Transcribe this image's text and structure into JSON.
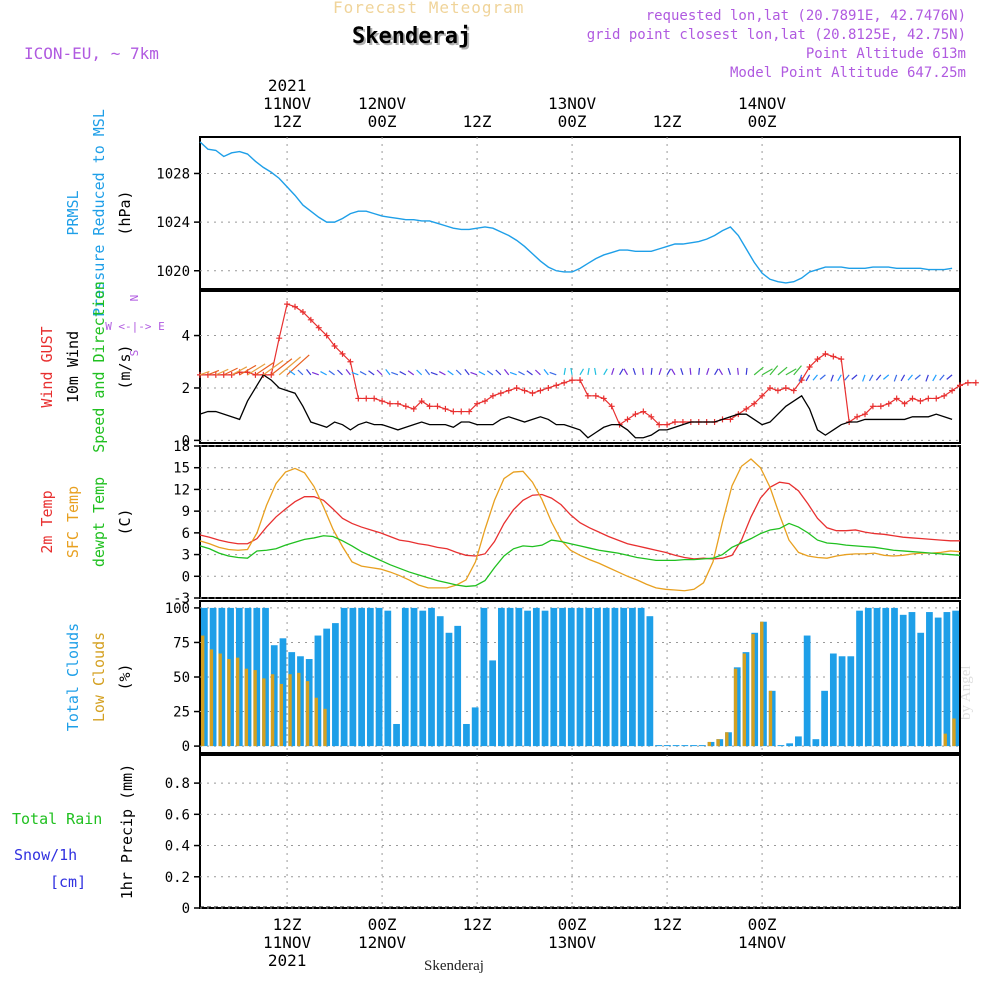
{
  "header": {
    "overtitle": "Forecast Meteogram",
    "title": "Skenderaj",
    "model": "ICON-EU, ~ 7km",
    "requested": "requested lon,lat (20.7891E, 42.7476N)",
    "gridpoint": "grid point closest lon,lat (20.8125E, 42.75N)",
    "point_alt": "Point Altitude 613m",
    "model_alt": "Model Point Altitude 647.25m",
    "footer": "Skenderaj",
    "credit": "by Angel",
    "compass": [
      "N",
      "W <-|-> E",
      "S"
    ]
  },
  "colors": {
    "pressure": "#1e9fe8",
    "gust": "#e83030",
    "wind": "#000000",
    "temp": "#e83030",
    "sfc": "#e8a020",
    "dew": "#20c020",
    "total_clouds": "#1e9fe8",
    "low_clouds": "#d4a020",
    "snow": "#3030e0",
    "rain": "#20c020",
    "purple": "#b05ae0"
  },
  "time_axis": {
    "top_labels": [
      {
        "t": 12,
        "lines": [
          "2021",
          "11NOV",
          "12Z"
        ]
      },
      {
        "t": 24,
        "lines": [
          "12NOV",
          "00Z"
        ]
      },
      {
        "t": 36,
        "lines": [
          "12Z"
        ]
      },
      {
        "t": 48,
        "lines": [
          "13NOV",
          "00Z"
        ]
      },
      {
        "t": 60,
        "lines": [
          "12Z"
        ]
      },
      {
        "t": 72,
        "lines": [
          "14NOV",
          "00Z"
        ]
      }
    ],
    "bottom_labels": [
      {
        "t": 12,
        "lines": [
          "12Z",
          "11NOV",
          "2021"
        ]
      },
      {
        "t": 24,
        "lines": [
          "00Z",
          "12NOV"
        ]
      },
      {
        "t": 36,
        "lines": [
          "12Z"
        ]
      },
      {
        "t": 48,
        "lines": [
          "00Z",
          "13NOV"
        ]
      },
      {
        "t": 60,
        "lines": [
          "12Z"
        ]
      },
      {
        "t": 72,
        "lines": [
          "00Z",
          "14NOV"
        ]
      }
    ]
  },
  "chart_data": [
    {
      "type": "line",
      "ylabel_lines": [
        {
          "text": "PRMSL",
          "color": "#1e9fe8"
        },
        {
          "text": "Pressure Reduced to MSL",
          "color": "#1e9fe8"
        },
        {
          "text": "(hPa)",
          "color": "#000000"
        }
      ],
      "ylim": [
        1018.5,
        1031
      ],
      "yticks": [
        1020,
        1024,
        1028
      ],
      "series": [
        {
          "values": [
            1030.6,
            1030.0,
            1029.9,
            1029.4,
            1029.7,
            1029.8,
            1029.6,
            1029.0,
            1028.5,
            1028.1,
            1027.6,
            1026.9,
            1026.2,
            1025.4,
            1024.9,
            1024.4,
            1024.0,
            1024.0,
            1024.3,
            1024.7,
            1024.9,
            1024.9,
            1024.7,
            1024.5,
            1024.4,
            1024.3,
            1024.2,
            1024.2,
            1024.1,
            1024.1,
            1023.9,
            1023.7,
            1023.5,
            1023.4,
            1023.4,
            1023.5,
            1023.6,
            1023.5,
            1023.2,
            1022.9,
            1022.5,
            1022.0,
            1021.4,
            1020.8,
            1020.3,
            1020.0,
            1019.9,
            1019.9,
            1020.2,
            1020.6,
            1021.0,
            1021.3,
            1021.5,
            1021.7,
            1021.7,
            1021.6,
            1021.6,
            1021.6,
            1021.8,
            1022.0,
            1022.2,
            1022.2,
            1022.3,
            1022.4,
            1022.6,
            1022.9,
            1023.3,
            1023.6,
            1022.9,
            1021.8,
            1020.7,
            1019.8,
            1019.3,
            1019.1,
            1019.0,
            1019.1,
            1019.4,
            1019.9,
            1020.1,
            1020.3,
            1020.3,
            1020.3,
            1020.2,
            1020.2,
            1020.2,
            1020.3,
            1020.3,
            1020.3,
            1020.2,
            1020.2,
            1020.2,
            1020.2,
            1020.1,
            1020.1,
            1020.1,
            1020.2
          ]
        }
      ]
    },
    {
      "type": "line",
      "ylabel_lines": [
        {
          "text": "Wind GUST",
          "color": "#e83030"
        },
        {
          "text": "10m Wind",
          "color": "#000000"
        },
        {
          "text": "Speed and Direction",
          "color": "#20c020"
        },
        {
          "text": "(m/s)",
          "color": "#000000"
        }
      ],
      "ylim": [
        -0.1,
        5.7
      ],
      "yticks": [
        0,
        2,
        4
      ],
      "series": [
        {
          "values": [
            2.5,
            2.5,
            2.5,
            2.5,
            2.5,
            2.6,
            2.6,
            2.5,
            2.5,
            2.5,
            3.9,
            5.2,
            5.1,
            4.9,
            4.6,
            4.3,
            4.0,
            3.6,
            3.3,
            3.0,
            1.6,
            1.6,
            1.6,
            1.5,
            1.4,
            1.4,
            1.3,
            1.2,
            1.5,
            1.3,
            1.3,
            1.2,
            1.1,
            1.1,
            1.1,
            1.4,
            1.5,
            1.7,
            1.8,
            1.9,
            2.0,
            1.9,
            1.8,
            1.9,
            2.0,
            2.1,
            2.2,
            2.3,
            2.3,
            1.7,
            1.7,
            1.6,
            1.3,
            0.6,
            0.8,
            1.0,
            1.1,
            0.9,
            0.6,
            0.6,
            0.7,
            0.7,
            0.7,
            0.7,
            0.7,
            0.7,
            0.8,
            0.8,
            1.0,
            1.2,
            1.4,
            1.7,
            2.0,
            1.9,
            2.0,
            1.9,
            2.3,
            2.8,
            3.1,
            3.3,
            3.2,
            3.1,
            0.7,
            0.9,
            1.0,
            1.3,
            1.3,
            1.4,
            1.6,
            1.4,
            1.6,
            1.5,
            1.6,
            1.6,
            1.7,
            1.9,
            2.1,
            2.2,
            2.2
          ]
        },
        {
          "values": [
            1.0,
            1.1,
            1.1,
            1.0,
            0.9,
            0.8,
            1.5,
            2.0,
            2.5,
            2.3,
            2.0,
            1.9,
            1.8,
            1.3,
            0.7,
            0.6,
            0.5,
            0.7,
            0.6,
            0.4,
            0.6,
            0.7,
            0.6,
            0.6,
            0.5,
            0.4,
            0.5,
            0.6,
            0.7,
            0.6,
            0.6,
            0.6,
            0.5,
            0.7,
            0.7,
            0.6,
            0.6,
            0.6,
            0.8,
            0.9,
            0.8,
            0.7,
            0.8,
            0.9,
            0.8,
            0.6,
            0.6,
            0.5,
            0.4,
            0.1,
            0.3,
            0.5,
            0.6,
            0.6,
            0.4,
            0.1,
            0.1,
            0.2,
            0.4,
            0.4,
            0.5,
            0.6,
            0.7,
            0.7,
            0.7,
            0.7,
            0.8,
            0.9,
            1.0,
            1.0,
            0.8,
            0.6,
            0.7,
            1.0,
            1.3,
            1.5,
            1.7,
            1.2,
            0.4,
            0.2,
            0.4,
            0.6,
            0.7,
            0.7,
            0.8,
            0.8,
            0.8,
            0.8,
            0.8,
            0.8,
            0.9,
            0.9,
            0.9,
            1.0,
            0.9,
            0.8
          ]
        }
      ]
    },
    {
      "type": "line",
      "ylabel_lines": [
        {
          "text": "2m Temp",
          "color": "#e83030"
        },
        {
          "text": "SFC Temp",
          "color": "#e8a020"
        },
        {
          "text": "dewpt Temp",
          "color": "#20c020"
        },
        {
          "text": "(C)",
          "color": "#000000"
        }
      ],
      "ylim": [
        -3,
        18
      ],
      "yticks": [
        -3,
        0,
        3,
        6,
        9,
        12,
        15,
        18
      ],
      "series": [
        {
          "values": [
            5.7,
            5.4,
            5.0,
            4.7,
            4.5,
            4.5,
            5.2,
            6.8,
            8.2,
            9.3,
            10.3,
            11.0,
            11.0,
            10.5,
            9.3,
            8.0,
            7.3,
            6.8,
            6.4,
            6.0,
            5.5,
            5.0,
            4.8,
            4.5,
            4.3,
            4.0,
            3.8,
            3.3,
            2.9,
            2.8,
            3.1,
            4.8,
            7.3,
            9.2,
            10.5,
            11.2,
            11.3,
            10.8,
            9.9,
            8.5,
            7.4,
            6.7,
            6.1,
            5.5,
            5.0,
            4.5,
            4.2,
            3.9,
            3.6,
            3.3,
            2.9,
            2.6,
            2.4,
            2.5,
            2.4,
            2.5,
            2.9,
            5.0,
            8.2,
            10.8,
            12.3,
            13.0,
            12.8,
            11.8,
            10.0,
            8.0,
            6.7,
            6.3,
            6.3,
            6.4,
            6.1,
            5.9,
            5.8,
            5.6,
            5.4,
            5.3,
            5.2,
            5.1,
            5.0,
            4.9,
            4.9
          ]
        },
        {
          "values": [
            4.9,
            4.5,
            4.0,
            3.7,
            3.6,
            3.7,
            6.0,
            9.8,
            12.8,
            14.4,
            14.9,
            14.3,
            12.4,
            9.6,
            6.5,
            4.1,
            2.0,
            1.4,
            1.2,
            1.0,
            0.6,
            0.1,
            -0.5,
            -1.2,
            -1.6,
            -1.6,
            -1.6,
            -1.2,
            -0.5,
            2.0,
            6.5,
            10.5,
            13.5,
            14.4,
            14.5,
            13.0,
            10.6,
            7.5,
            5.0,
            3.6,
            2.9,
            2.3,
            1.8,
            1.2,
            0.6,
            0.0,
            -0.5,
            -1.1,
            -1.6,
            -1.8,
            -1.9,
            -2.0,
            -1.8,
            -0.9,
            2.0,
            7.5,
            12.5,
            15.2,
            16.2,
            15.0,
            12.3,
            8.5,
            5.0,
            3.3,
            2.8,
            2.6,
            2.5,
            2.8,
            3.0,
            3.1,
            3.1,
            3.2,
            2.9,
            2.8,
            2.9,
            3.1,
            3.2,
            3.2,
            3.3,
            3.5,
            3.4
          ]
        },
        {
          "values": [
            4.2,
            3.8,
            3.2,
            2.8,
            2.6,
            2.5,
            3.5,
            3.6,
            3.8,
            4.3,
            4.7,
            5.1,
            5.3,
            5.6,
            5.5,
            4.9,
            4.2,
            3.4,
            2.8,
            2.2,
            1.6,
            1.1,
            0.6,
            0.2,
            -0.2,
            -0.6,
            -0.9,
            -1.2,
            -1.4,
            -1.3,
            -0.6,
            1.2,
            2.8,
            3.8,
            4.2,
            4.1,
            4.3,
            5.0,
            4.8,
            4.5,
            4.2,
            3.9,
            3.6,
            3.4,
            3.2,
            2.9,
            2.6,
            2.4,
            2.2,
            2.2,
            2.2,
            2.3,
            2.3,
            2.4,
            2.5,
            3.0,
            4.0,
            4.6,
            5.2,
            5.9,
            6.4,
            6.6,
            7.3,
            6.8,
            6.0,
            5.0,
            4.6,
            4.5,
            4.3,
            4.2,
            4.1,
            4.0,
            3.8,
            3.6,
            3.5,
            3.4,
            3.3,
            3.2,
            3.1,
            3.0,
            2.9
          ]
        }
      ]
    },
    {
      "type": "bar",
      "ylabel_lines": [
        {
          "text": "Total Clouds",
          "color": "#1e9fe8"
        },
        {
          "text": "Low Clouds",
          "color": "#d4a020"
        },
        {
          "text": "(%)",
          "color": "#000000"
        }
      ],
      "ylim": [
        -5,
        105
      ],
      "yticks": [
        0,
        25,
        50,
        75,
        100
      ],
      "series": [
        {
          "values": [
            100,
            100,
            100,
            100,
            100,
            100,
            100,
            100,
            73,
            78,
            68,
            65,
            63,
            80,
            85,
            89,
            100,
            100,
            100,
            100,
            100,
            98,
            16,
            100,
            100,
            98,
            100,
            94,
            82,
            87,
            16,
            28,
            100,
            62,
            100,
            100,
            100,
            98,
            100,
            98,
            100,
            100,
            100,
            100,
            100,
            100,
            100,
            100,
            100,
            100,
            100,
            94,
            0,
            0,
            0,
            0,
            0,
            0,
            3,
            5,
            10,
            57,
            68,
            82,
            90,
            40,
            0,
            2,
            7,
            80,
            5,
            40,
            67,
            65,
            65,
            98,
            100,
            100,
            100,
            100,
            95,
            97,
            82,
            97,
            93,
            97,
            98
          ]
        },
        {
          "values": [
            80,
            70,
            67,
            63,
            64,
            56,
            55,
            49,
            52,
            45,
            52,
            53,
            47,
            35,
            27,
            0,
            0,
            0,
            0,
            0,
            0,
            0,
            0,
            0,
            0,
            0,
            0,
            0,
            0,
            0,
            0,
            0,
            0,
            0,
            0,
            0,
            0,
            0,
            0,
            0,
            0,
            0,
            0,
            0,
            0,
            0,
            0,
            0,
            0,
            0,
            0,
            0,
            0,
            0,
            0,
            0,
            0,
            0,
            3,
            5,
            10,
            56,
            67,
            81,
            90,
            40,
            0,
            0,
            0,
            0,
            0,
            0,
            0,
            0,
            0,
            0,
            0,
            0,
            0,
            0,
            0,
            0,
            0,
            0,
            0,
            9,
            20
          ]
        }
      ]
    },
    {
      "type": "bar",
      "ylabel_lines": [
        {
          "text": "1hr Precip (mm)",
          "color": "#000000"
        }
      ],
      "left_labels": [
        {
          "text": "Total  Rain",
          "color": "#20c020"
        },
        {
          "text": "Snow/1h",
          "color": "#3030e0"
        },
        {
          "text": "[cm]",
          "color": "#3030e0"
        }
      ],
      "ylim": [
        0,
        0.98
      ],
      "yticks": [
        0,
        0.2,
        0.4,
        0.6,
        0.8
      ],
      "series": []
    }
  ]
}
